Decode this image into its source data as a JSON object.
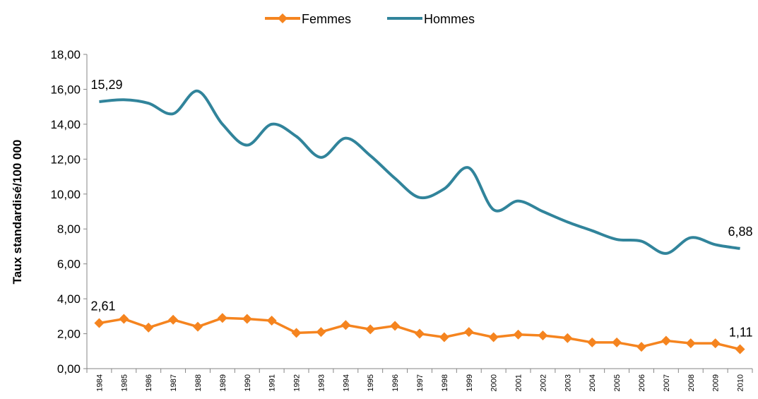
{
  "chart_data": {
    "type": "line",
    "y_label": "Taux standardisé/100 000",
    "categories": [
      "1984",
      "1985",
      "1986",
      "1987",
      "1988",
      "1989",
      "1990",
      "1991",
      "1992",
      "1993",
      "1994",
      "1995",
      "1996",
      "1997",
      "1998",
      "1999",
      "2000",
      "2001",
      "2002",
      "2003",
      "2004",
      "2005",
      "2006",
      "2007",
      "2008",
      "2009",
      "2010"
    ],
    "series": [
      {
        "name": "Femmes",
        "color": "#f5841f",
        "marker": "diamond",
        "smooth": false,
        "values": [
          2.61,
          2.85,
          2.35,
          2.8,
          2.4,
          2.9,
          2.85,
          2.75,
          2.05,
          2.1,
          2.5,
          2.25,
          2.45,
          2.0,
          1.8,
          2.1,
          1.8,
          1.95,
          1.9,
          1.75,
          1.5,
          1.5,
          1.25,
          1.6,
          1.45,
          1.45,
          1.11
        ],
        "value_labels": [
          "2,61",
          null,
          null,
          null,
          null,
          null,
          null,
          null,
          null,
          null,
          null,
          null,
          null,
          null,
          null,
          null,
          null,
          null,
          null,
          null,
          null,
          null,
          null,
          null,
          null,
          null,
          "1,11"
        ]
      },
      {
        "name": "Hommes",
        "color": "#31849b",
        "marker": "none",
        "smooth": true,
        "values": [
          15.29,
          15.4,
          15.2,
          14.6,
          15.9,
          14.0,
          12.8,
          14.0,
          13.3,
          12.1,
          13.2,
          12.2,
          10.9,
          9.8,
          10.3,
          11.5,
          9.1,
          9.6,
          9.0,
          8.4,
          7.9,
          7.4,
          7.3,
          6.6,
          7.5,
          7.1,
          6.88
        ],
        "value_labels": [
          "15,29",
          null,
          null,
          null,
          null,
          null,
          null,
          null,
          null,
          null,
          null,
          null,
          null,
          null,
          null,
          null,
          null,
          null,
          null,
          null,
          null,
          null,
          null,
          null,
          null,
          null,
          "6,88"
        ]
      }
    ],
    "ylim": [
      0,
      18
    ],
    "yticks": [
      {
        "value": 0,
        "label": "0,00"
      },
      {
        "value": 2,
        "label": "2,00"
      },
      {
        "value": 4,
        "label": "4,00"
      },
      {
        "value": 6,
        "label": "6,00"
      },
      {
        "value": 8,
        "label": "8,00"
      },
      {
        "value": 10,
        "label": "10,00"
      },
      {
        "value": 12,
        "label": "12,00"
      },
      {
        "value": 14,
        "label": "14,00"
      },
      {
        "value": 16,
        "label": "16,00"
      },
      {
        "value": 18,
        "label": "18,00"
      }
    ],
    "grid": false,
    "legend": "top"
  }
}
